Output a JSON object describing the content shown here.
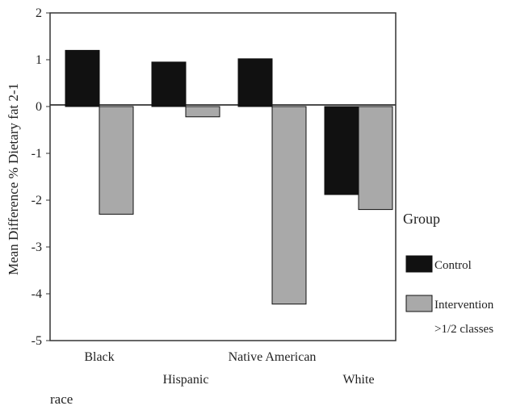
{
  "chart_data": {
    "type": "bar",
    "categories": [
      "Black",
      "Hispanic",
      "Native American",
      "White"
    ],
    "series": [
      {
        "name": "Control",
        "values": [
          1.2,
          0.95,
          1.02,
          -1.88
        ],
        "color": "#111111"
      },
      {
        "name": "Intervention",
        "values": [
          -2.3,
          -0.22,
          -4.22,
          -2.2
        ],
        "color": "#a9a9a9"
      }
    ],
    "ylabel": "Mean Difference % Dietary fat 2-1",
    "xlabel": "race",
    "ylim": [
      -5,
      2
    ],
    "yticks": [
      "2",
      "1",
      "0",
      "-1",
      "-2",
      "-3",
      "-4",
      "-5"
    ],
    "grid": false,
    "legend": {
      "title": "Group",
      "placement": "right",
      "entries": [
        "Control",
        "Intervention"
      ],
      "note": ">1/2 classes"
    }
  }
}
